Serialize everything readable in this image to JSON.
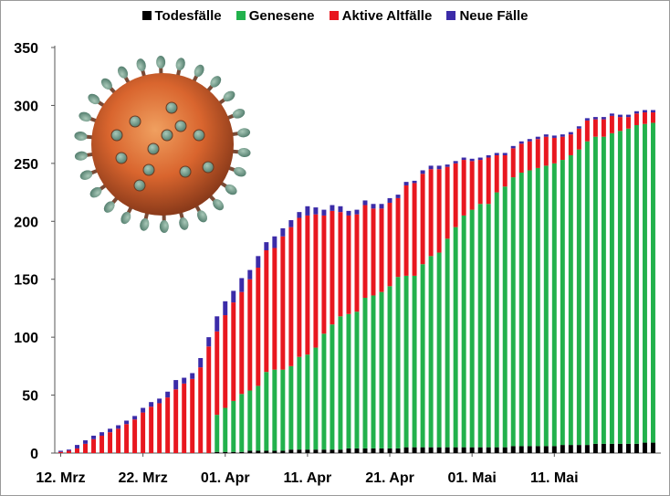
{
  "chart_data": {
    "type": "bar",
    "stacked": true,
    "title": "",
    "xlabel": "",
    "ylabel": "",
    "ylim": [
      0,
      350
    ],
    "yticks": [
      0,
      50,
      100,
      150,
      200,
      250,
      300,
      350
    ],
    "xtick_labels": [
      "12. Mrz",
      "22. Mrz",
      "01. Apr",
      "11. Apr",
      "21. Apr",
      "01. Mai",
      "11. Mai"
    ],
    "xtick_every": 10,
    "legend_position": "top",
    "colors": {
      "todesfaelle": "#000000",
      "genesene": "#22b14c",
      "aktive": "#e8171f",
      "neue": "#3b2ba8"
    },
    "x_start": "12. Mrz",
    "series": [
      {
        "name": "Todesfälle",
        "values": [
          0,
          0,
          0,
          0,
          0,
          0,
          0,
          0,
          0,
          0,
          0,
          0,
          0,
          0,
          0,
          0,
          0,
          0,
          0,
          1,
          1,
          1,
          1,
          2,
          2,
          2,
          2,
          2,
          3,
          3,
          3,
          3,
          3,
          3,
          3,
          4,
          4,
          4,
          4,
          4,
          4,
          4,
          5,
          5,
          5,
          5,
          5,
          5,
          5,
          5,
          5,
          5,
          5,
          5,
          5,
          6,
          6,
          6,
          6,
          6,
          6,
          7,
          7,
          7,
          7,
          8,
          8,
          8,
          8,
          8,
          8,
          9,
          9
        ]
      },
      {
        "name": "Genesene",
        "values": [
          0,
          0,
          0,
          0,
          0,
          0,
          0,
          0,
          0,
          0,
          0,
          0,
          0,
          0,
          0,
          0,
          0,
          0,
          0,
          32,
          38,
          44,
          50,
          52,
          56,
          68,
          70,
          70,
          72,
          80,
          82,
          88,
          100,
          108,
          115,
          116,
          118,
          130,
          132,
          135,
          140,
          148,
          148,
          148,
          158,
          165,
          168,
          180,
          190,
          200,
          205,
          210,
          210,
          220,
          225,
          232,
          236,
          238,
          240,
          242,
          244,
          246,
          250,
          255,
          262,
          265,
          265,
          268,
          270,
          272,
          275,
          275,
          276
        ]
      },
      {
        "name": "Aktive Altfälle",
        "values": [
          1,
          2,
          4,
          8,
          12,
          15,
          18,
          21,
          25,
          29,
          35,
          40,
          43,
          48,
          55,
          60,
          64,
          74,
          92,
          72,
          80,
          85,
          88,
          96,
          102,
          105,
          105,
          115,
          120,
          120,
          120,
          115,
          102,
          98,
          90,
          85,
          84,
          80,
          75,
          72,
          72,
          68,
          78,
          80,
          78,
          75,
          72,
          62,
          55,
          48,
          42,
          38,
          40,
          32,
          27,
          25,
          25,
          25,
          25,
          25,
          22,
          20,
          18,
          18,
          18,
          15,
          15,
          15,
          12,
          10,
          10,
          10,
          9
        ]
      },
      {
        "name": "Neue Fälle",
        "values": [
          1,
          1,
          3,
          3,
          3,
          3,
          3,
          3,
          3,
          3,
          4,
          4,
          4,
          5,
          8,
          5,
          5,
          8,
          8,
          13,
          12,
          10,
          12,
          8,
          10,
          7,
          10,
          7,
          6,
          5,
          8,
          6,
          5,
          5,
          5,
          4,
          4,
          4,
          4,
          4,
          4,
          3,
          3,
          2,
          3,
          3,
          3,
          2,
          2,
          2,
          2,
          2,
          2,
          2,
          2,
          2,
          2,
          2,
          2,
          2,
          2,
          2,
          2,
          2,
          2,
          2,
          2,
          2,
          2,
          2,
          2,
          2,
          2
        ]
      }
    ]
  },
  "legend": {
    "items": [
      "Todesfälle",
      "Genesene",
      "Aktive Altfälle",
      "Neue Fälle"
    ]
  }
}
